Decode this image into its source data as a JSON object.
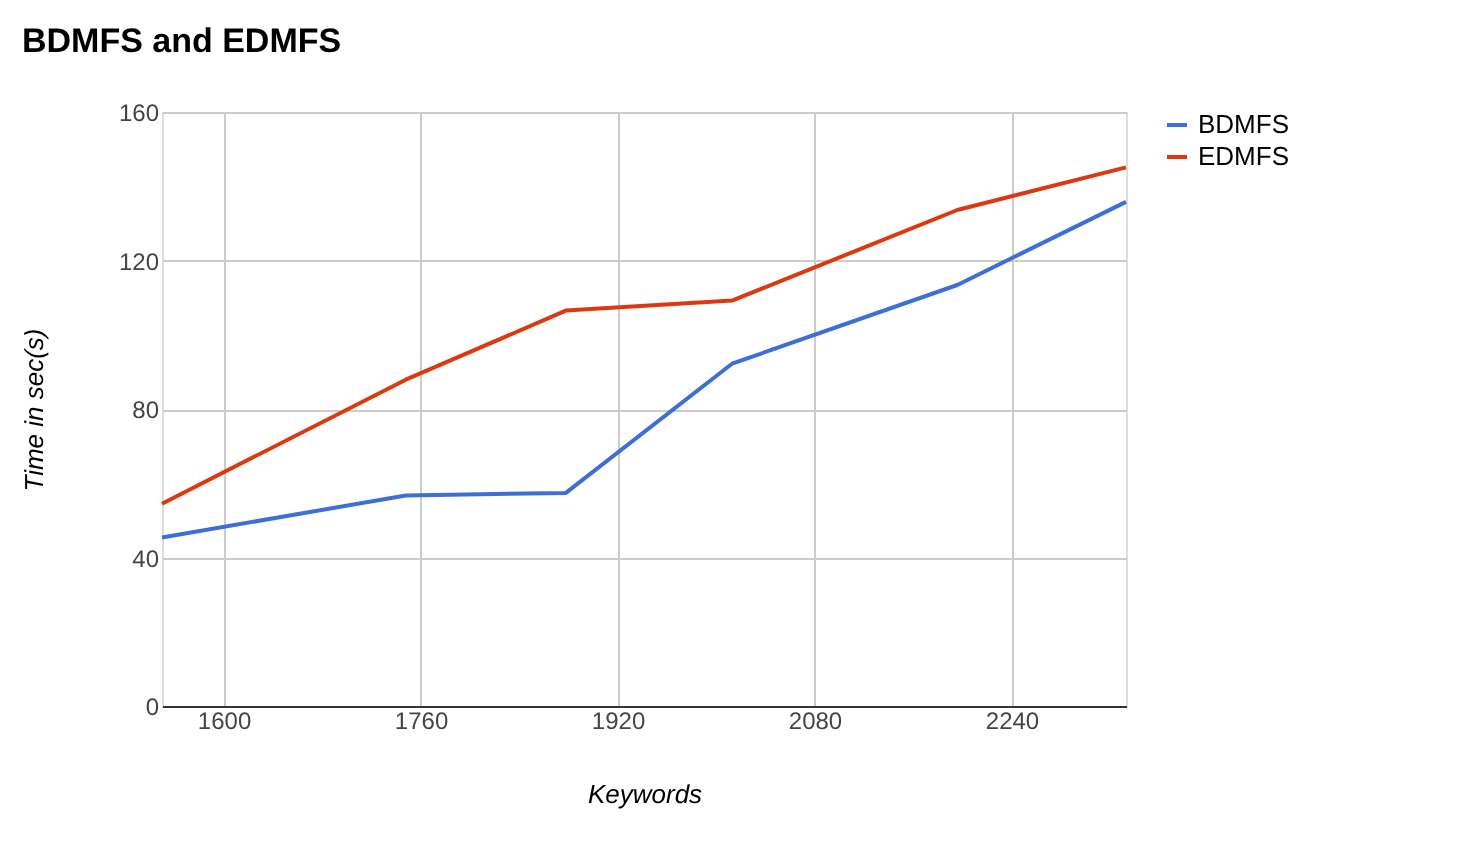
{
  "chart_data": {
    "type": "line",
    "title": "BDMFS and EDMFS",
    "xlabel": "Keywords",
    "ylabel": "Time in sec(s)",
    "x": [
      1550,
      1748,
      1878,
      2013,
      2196,
      2333
    ],
    "series": [
      {
        "name": "BDMFS",
        "color": "#3d6fd6",
        "values": [
          45.4,
          56.7,
          57.4,
          92.2,
          113.4,
          135.8
        ]
      },
      {
        "name": "EDMFS",
        "color": "#dc3912",
        "values": [
          54.5,
          87.9,
          106.5,
          109.2,
          133.6,
          145.1
        ]
      }
    ],
    "xlim": [
      1550,
      2333
    ],
    "xticks": [
      1600,
      1760,
      1920,
      2080,
      2240
    ],
    "ylim": [
      0,
      160
    ],
    "yticks": [
      0,
      40,
      80,
      120,
      160
    ],
    "grid": true,
    "legend": "right",
    "marker": "none",
    "line_style": "solid"
  }
}
